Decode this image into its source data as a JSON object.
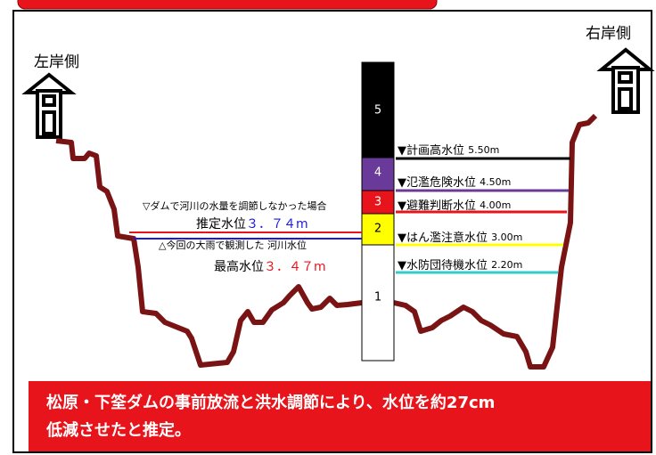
{
  "banks": {
    "left": "左岸側",
    "right": "右岸側"
  },
  "gauge": {
    "segments": [
      "5",
      "4",
      "3",
      "2",
      "1"
    ]
  },
  "levels": [
    {
      "mark": "▼",
      "name": "計画高水位",
      "value": "5.50m"
    },
    {
      "mark": "▼",
      "name": "氾濫危険水位",
      "value": "4.50m"
    },
    {
      "mark": "▼",
      "name": "避難判断水位",
      "value": "4.00m"
    },
    {
      "mark": "▼",
      "name": "はん濫注意水位",
      "value": "3.00m"
    },
    {
      "mark": "▼",
      "name": "水防団待機水位",
      "value": "2.20m"
    }
  ],
  "estimate": {
    "note": "▽ダムで河川の水量を調節しなかった場合",
    "label": "推定水位",
    "value": "３．７４m"
  },
  "observed": {
    "note": "△今回の大雨で観測した 河川水位",
    "label": "最高水位",
    "value": "３．４７m"
  },
  "conclusion": [
    "松原・下筌ダムの事前放流と洪水調節により、水位を約27cm",
    "低減させたと推定。"
  ]
}
